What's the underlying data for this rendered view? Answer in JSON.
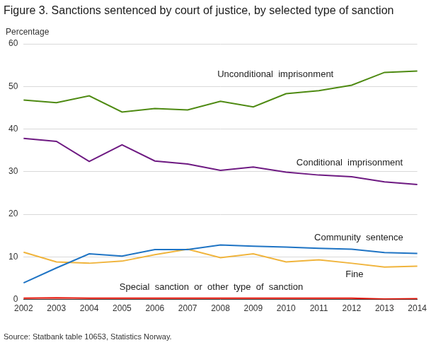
{
  "chart_data": {
    "type": "line",
    "title": "Figure 3. Sanctions sentenced by court of justice, by selected type of sanction",
    "y_label": "Percentage",
    "source": "Source: Statbank table 10653, Statistics Norway.",
    "categories": [
      2002,
      2003,
      2004,
      2005,
      2006,
      2007,
      2008,
      2009,
      2010,
      2011,
      2012,
      2013,
      2014
    ],
    "series": [
      {
        "name": "Unconditional  imprisonment",
        "color": "#4e8a12",
        "values": [
          46.8,
          46.2,
          47.8,
          44.0,
          44.8,
          44.5,
          46.5,
          45.2,
          48.3,
          49.0,
          50.3,
          53.3,
          53.6
        ]
      },
      {
        "name": "Conditional  imprisonment",
        "color": "#6e1a82",
        "values": [
          37.8,
          37.1,
          32.4,
          36.3,
          32.5,
          31.8,
          30.3,
          31.1,
          29.9,
          29.2,
          28.8,
          27.6,
          27.0
        ]
      },
      {
        "name": "Community  sentence",
        "color": "#1f74c4",
        "values": [
          3.9,
          7.4,
          10.7,
          10.2,
          11.7,
          11.7,
          12.8,
          12.5,
          12.3,
          12.0,
          11.8,
          11.0,
          10.8
        ]
      },
      {
        "name": "Fine",
        "color": "#f0b43c",
        "values": [
          11.1,
          8.8,
          8.5,
          9.0,
          10.5,
          11.8,
          9.8,
          10.7,
          8.8,
          9.3,
          8.5,
          7.6,
          7.8
        ]
      },
      {
        "name": "Special  sanction  or  other  type  of  sanction",
        "color": "#e8190d",
        "values": [
          0.3,
          0.4,
          0.3,
          0.3,
          0.3,
          0.3,
          0.3,
          0.3,
          0.3,
          0.3,
          0.3,
          0.1,
          0.2
        ]
      }
    ],
    "ylim": [
      0,
      60
    ],
    "yticks": [
      0,
      10,
      20,
      30,
      40,
      50,
      60
    ],
    "grid": true
  }
}
